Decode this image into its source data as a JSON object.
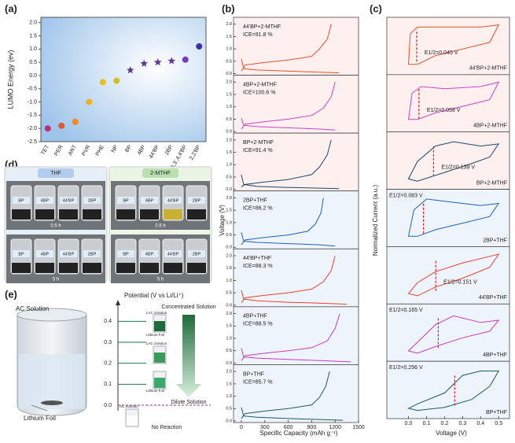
{
  "figure": {
    "panel_a": {
      "letter": "(a)",
      "ylabel": "LUMO Energy (ev)",
      "ylim": [
        -2.5,
        2.2
      ],
      "yticks": [
        {
          "value": 2,
          "label": "2.0"
        },
        1.5,
        {
          "value": 1,
          "label": "1.0"
        },
        0.5,
        {
          "value": 0,
          "label": "0.0"
        },
        -0.5,
        {
          "value": -1,
          "label": "-1.0"
        },
        -1.5,
        {
          "value": -2,
          "label": "-2.0"
        },
        -2.5
      ],
      "categories": [
        "TET",
        "PER",
        "ANT",
        "PVR",
        "PHE",
        "NP",
        "BP",
        "4BP",
        "44'BP",
        "2BP",
        "3,3',4,4'BP",
        "2,2'BP"
      ],
      "values": [
        -2.0,
        -1.9,
        -1.75,
        -1.0,
        -0.25,
        -0.2,
        0.2,
        0.45,
        0.5,
        0.55,
        0.6,
        1.1
      ],
      "colors": [
        "#c0307a",
        "#e05a30",
        "#f08a20",
        "#f0b020",
        "#e8c020",
        "#d0c020",
        "#5a3aa0",
        "#5a3aa0",
        "#5a3aa0",
        "#5a3aa0",
        "#7a3ac0",
        "#4030b0"
      ],
      "markers": [
        "circle",
        "circle",
        "circle",
        "circle",
        "circle",
        "circle",
        "star",
        "star",
        "star",
        "star",
        "circle",
        "circle"
      ]
    },
    "panel_b": {
      "letter": "(b)",
      "xlabel": "Specific Capacity (mAh g⁻¹)",
      "ylabel": "Voltage (V)",
      "xlim": [
        -100,
        1500
      ],
      "xticks": [
        0,
        300,
        600,
        900,
        1200,
        1500
      ],
      "ylim": [
        0,
        2.15
      ],
      "yticks": [
        {
          "value": 0,
          "label": "0.0"
        },
        0.5,
        {
          "value": 1,
          "label": "1.0"
        },
        1.5,
        {
          "value": 2,
          "label": "2.0"
        }
      ],
      "plots": [
        {
          "name": "44'BP+2-MTHF",
          "ice": "ICE=91.8 %",
          "color": "#e8502a",
          "background": "#fdf0ee",
          "charge": {
            "x": [
              0,
              50,
              300,
              600,
              900,
              1000,
              1100,
              1150
            ],
            "y": [
              0.1,
              0.35,
              0.45,
              0.55,
              0.7,
              1.0,
              1.4,
              2.0
            ]
          },
          "discharge": {
            "x": [
              0,
              30,
              200,
              600,
              1000,
              1250
            ],
            "y": [
              0.6,
              0.2,
              0.15,
              0.1,
              0.06,
              0.03
            ]
          }
        },
        {
          "name": "4BP+2-MTHF",
          "ice": "ICE=100.6 %",
          "color": "#d040c8",
          "background": "#fdf0ee",
          "charge": {
            "x": [
              0,
              50,
              300,
              600,
              900,
              1050,
              1150,
              1200
            ],
            "y": [
              0.1,
              0.3,
              0.4,
              0.5,
              0.65,
              0.95,
              1.4,
              2.0
            ]
          },
          "discharge": {
            "x": [
              0,
              30,
              200,
              600,
              1000,
              1200
            ],
            "y": [
              0.55,
              0.25,
              0.2,
              0.15,
              0.1,
              0.06
            ]
          }
        },
        {
          "name": "BP+2-MTHF",
          "ice": "ICE=91.4 %",
          "color": "#1a4a6a",
          "background": "#fdf0ee",
          "charge": {
            "x": [
              0,
              50,
              300,
              600,
              900,
              1000,
              1100,
              1150
            ],
            "y": [
              0.1,
              0.2,
              0.3,
              0.4,
              0.6,
              0.9,
              1.4,
              2.0
            ]
          },
          "discharge": {
            "x": [
              0,
              30,
              200,
              600,
              1000,
              1250
            ],
            "y": [
              0.6,
              0.2,
              0.12,
              0.08,
              0.05,
              0.03
            ]
          }
        },
        {
          "name": "2BP+THF",
          "ice": "ICE=86.2 %",
          "color": "#2060c0",
          "background": "#eef4fc",
          "charge": {
            "x": [
              0,
              50,
              300,
              600,
              850,
              950,
              1020,
              1050
            ],
            "y": [
              0.1,
              0.3,
              0.4,
              0.5,
              0.65,
              0.95,
              1.4,
              2.0
            ]
          },
          "discharge": {
            "x": [
              0,
              30,
              200,
              600,
              1000,
              1200
            ],
            "y": [
              0.6,
              0.25,
              0.2,
              0.15,
              0.1,
              0.05
            ]
          }
        },
        {
          "name": "44'BP+THF",
          "ice": "ICE=88.3 %",
          "color": "#e84030",
          "background": "#eef4fc",
          "charge": {
            "x": [
              0,
              50,
              300,
              600,
              900,
              1050,
              1150,
              1200
            ],
            "y": [
              0.1,
              0.3,
              0.4,
              0.5,
              0.65,
              0.95,
              1.4,
              2.0
            ]
          },
          "discharge": {
            "x": [
              0,
              30,
              200,
              600,
              1000,
              1350
            ],
            "y": [
              0.6,
              0.25,
              0.18,
              0.12,
              0.08,
              0.04
            ]
          }
        },
        {
          "name": "4BP+THF",
          "ice": "ICE=88.5 %",
          "color": "#c83ac8",
          "background": "#eef4fc",
          "charge": {
            "x": [
              0,
              50,
              300,
              600,
              900,
              1100,
              1200,
              1260
            ],
            "y": [
              0.1,
              0.3,
              0.4,
              0.5,
              0.62,
              0.9,
              1.4,
              2.0
            ]
          },
          "discharge": {
            "x": [
              0,
              30,
              200,
              600,
              1000,
              1400
            ],
            "y": [
              0.6,
              0.25,
              0.2,
              0.15,
              0.1,
              0.05
            ]
          }
        },
        {
          "name": "BP+THF",
          "ice": "ICE=85.7 %",
          "color": "#1a5a6a",
          "background": "#eef4fc",
          "charge": {
            "x": [
              0,
              50,
              300,
              600,
              900,
              1000,
              1080,
              1130
            ],
            "y": [
              0.1,
              0.3,
              0.4,
              0.5,
              0.65,
              0.95,
              1.4,
              2.0
            ]
          },
          "discharge": {
            "x": [
              0,
              30,
              200,
              600,
              1000,
              1300
            ],
            "y": [
              0.55,
              0.2,
              0.15,
              0.1,
              0.06,
              0.03
            ]
          }
        }
      ]
    },
    "panel_c": {
      "letter": "(c)",
      "xlabel": "Voltage (V)",
      "ylabel": "Normalized Current (a.u.)",
      "xlim": [
        -0.12,
        0.56
      ],
      "xticks": [
        {
          "value": 0,
          "label": "0.0"
        },
        0.1,
        0.2,
        0.3,
        0.4,
        0.5
      ],
      "ylim": [
        -0.1,
        1.1
      ],
      "plots": [
        {
          "name": "44'BP+2-MTHF",
          "e_half_label": "E1/2=0.045 V",
          "e_half": 0.045,
          "color": "#e8502a",
          "background": "#fdf0ee",
          "loop": {
            "x": [
              0.0,
              0.01,
              0.05,
              0.2,
              0.4,
              0.5,
              0.45,
              0.3,
              0.15,
              0.05,
              0.0
            ],
            "y": [
              0.1,
              0.8,
              0.95,
              0.95,
              0.95,
              1.0,
              0.6,
              0.45,
              0.3,
              0.1,
              0.1
            ]
          }
        },
        {
          "name": "4BP+2-MTHF",
          "e_half_label": "E1/2=0.058 V",
          "e_half": 0.058,
          "color": "#d040c8",
          "background": "#fdf0ee",
          "loop": {
            "x": [
              0.0,
              0.02,
              0.07,
              0.2,
              0.4,
              0.5,
              0.45,
              0.3,
              0.15,
              0.05,
              0.0
            ],
            "y": [
              0.15,
              0.75,
              0.9,
              0.85,
              0.9,
              1.0,
              0.6,
              0.45,
              0.3,
              0.15,
              0.15
            ]
          }
        },
        {
          "name": "BP+2-MTHF",
          "e_half_label": "E1/2=0.139 V",
          "e_half": 0.139,
          "color": "#1a4a6a",
          "background": "#fdf0ee",
          "loop": {
            "x": [
              0.0,
              0.05,
              0.15,
              0.25,
              0.4,
              0.5,
              0.45,
              0.35,
              0.2,
              0.05,
              0.0
            ],
            "y": [
              0.1,
              0.5,
              0.85,
              0.95,
              0.85,
              0.9,
              0.6,
              0.45,
              0.25,
              0.05,
              0.1
            ]
          }
        },
        {
          "name": "2BP+THF",
          "e_half_label": "E1/2=0.083 V",
          "e_half": 0.083,
          "color": "#2060c0",
          "background": "#eef4fc",
          "loop": {
            "x": [
              0.0,
              0.03,
              0.1,
              0.2,
              0.4,
              0.5,
              0.45,
              0.3,
              0.15,
              0.05,
              0.0
            ],
            "y": [
              0.1,
              0.7,
              0.95,
              0.9,
              0.8,
              0.85,
              0.55,
              0.4,
              0.25,
              0.1,
              0.1
            ]
          }
        },
        {
          "name": "44'BP+THF",
          "e_half_label": "E1/2=0.151 V",
          "e_half": 0.151,
          "color": "#e84030",
          "background": "#eef4fc",
          "loop": {
            "x": [
              0.0,
              0.05,
              0.15,
              0.3,
              0.45,
              0.5,
              0.45,
              0.3,
              0.15,
              0.05,
              0.0
            ],
            "y": [
              0.1,
              0.35,
              0.6,
              0.8,
              0.95,
              1.0,
              0.7,
              0.45,
              0.25,
              0.05,
              0.1
            ]
          }
        },
        {
          "name": "4BP+THF",
          "e_half_label": "E1/2=0.165 V",
          "e_half": 0.165,
          "color": "#c83ac8",
          "background": "#eef4fc",
          "loop": {
            "x": [
              0.0,
              0.05,
              0.15,
              0.25,
              0.4,
              0.5,
              0.45,
              0.3,
              0.15,
              0.05,
              0.0
            ],
            "y": [
              0.1,
              0.3,
              0.7,
              0.9,
              0.75,
              0.8,
              0.55,
              0.4,
              0.2,
              0.05,
              0.1
            ]
          }
        },
        {
          "name": "BP+THF",
          "e_half_label": "E1/2=0.256 V",
          "e_half": 0.256,
          "color": "#1a5a6a",
          "background": "#eef4fc",
          "loop": {
            "x": [
              0.0,
              0.05,
              0.2,
              0.3,
              0.4,
              0.5,
              0.45,
              0.35,
              0.2,
              0.05,
              0.0
            ],
            "y": [
              0.1,
              0.2,
              0.45,
              0.85,
              0.95,
              0.95,
              0.6,
              0.3,
              0.12,
              0.05,
              0.1
            ]
          }
        }
      ]
    },
    "panel_d": {
      "letter": "(d)",
      "photos": [
        {
          "solvent": "THF",
          "time": "0.5 h",
          "vials": [
            "BP",
            "4BP",
            "44'BP",
            "2BP"
          ]
        },
        {
          "solvent": "2-MTHF",
          "time": "0.5 h",
          "vials": [
            "BP",
            "4BP",
            "44'BP",
            "2BP"
          ]
        },
        {
          "solvent": "THF",
          "time": "5 h",
          "vials": [
            "BP",
            "4BP",
            "44'BP",
            "2BP"
          ]
        },
        {
          "solvent": "2-MTHF",
          "time": "5 h",
          "vials": [
            "BP",
            "4BP",
            "44'BP",
            "2BP"
          ]
        }
      ]
    },
    "panel_e": {
      "letter": "(e)",
      "axis_title": "Potential (V vs Li/Li⁺)",
      "ylim": [
        0,
        0.45
      ],
      "yticks": [
        {
          "value": 0,
          "label": "0.0"
        },
        0.1,
        0.2,
        0.3,
        0.4
      ],
      "ac_solution": "AC Solution",
      "lithium_foil": "Lithium Foil",
      "concentrated": "Concentrated Solution",
      "dilute": "Dilute Solution",
      "no_reaction": "No Reaction",
      "small_labels": [
        "LAC Solution",
        "Lithium Foil",
        "LAC Solution",
        "Lithium Foil",
        "AC Solution"
      ]
    }
  }
}
